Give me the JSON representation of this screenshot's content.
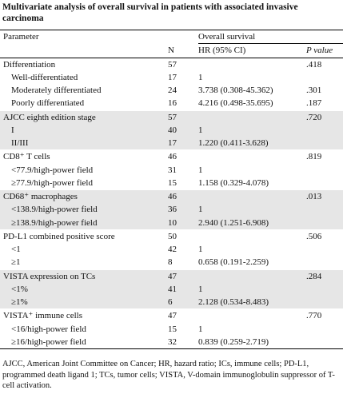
{
  "title": "Multivariate analysis of overall survival in patients with associated invasive carcinoma",
  "table": {
    "header": {
      "parameter": "Parameter",
      "group": "Overall survival",
      "n": "N",
      "hr": "HR (95% CI)",
      "p": "P value"
    },
    "groups": [
      {
        "rows": [
          {
            "label": "Differentiation",
            "n": "57",
            "p": ".418"
          },
          {
            "label": "Well-differentiated",
            "n": "17",
            "hr": "1"
          },
          {
            "label": "Moderately differentiated",
            "n": "24",
            "hr": "3.738 (0.308-45.362)",
            "p": ".301"
          },
          {
            "label": "Poorly differentiated",
            "n": "16",
            "hr": "4.216 (0.498-35.695)",
            "p": ".187"
          }
        ]
      },
      {
        "rows": [
          {
            "label": "AJCC eighth edition stage",
            "n": "57",
            "p": ".720"
          },
          {
            "label": "I",
            "n": "40",
            "hr": "1"
          },
          {
            "label": "II/III",
            "n": "17",
            "hr": "1.220 (0.411-3.628)"
          }
        ]
      },
      {
        "rows": [
          {
            "label": "CD8⁺ T cells",
            "n": "46",
            "p": ".819"
          },
          {
            "label": "<77.9/high-power field",
            "n": "31",
            "hr": "1"
          },
          {
            "label": "≥77.9/high-power field",
            "n": "15",
            "hr": "1.158 (0.329-4.078)"
          }
        ]
      },
      {
        "rows": [
          {
            "label": "CD68⁺ macrophages",
            "n": "46",
            "p": ".013"
          },
          {
            "label": "<138.9/high-power field",
            "n": "36",
            "hr": "1"
          },
          {
            "label": "≥138.9/high-power field",
            "n": "10",
            "hr": "2.940 (1.251-6.908)"
          }
        ]
      },
      {
        "rows": [
          {
            "label": "PD-L1 combined positive score",
            "n": "50",
            "p": ".506"
          },
          {
            "label": "<1",
            "n": "42",
            "hr": "1"
          },
          {
            "label": "≥1",
            "n": "8",
            "hr": "0.658 (0.191-2.259)"
          }
        ]
      },
      {
        "rows": [
          {
            "label": "VISTA expression on TCs",
            "n": "47",
            "p": ".284"
          },
          {
            "label": "<1%",
            "n": "41",
            "hr": "1"
          },
          {
            "label": "≥1%",
            "n": "6",
            "hr": "2.128 (0.534-8.483)"
          }
        ]
      },
      {
        "rows": [
          {
            "label": "VISTA⁺ immune cells",
            "n": "47",
            "p": ".770"
          },
          {
            "label": "<16/high-power field",
            "n": "15",
            "hr": "1"
          },
          {
            "label": "≥16/high-power field",
            "n": "32",
            "hr": "0.839 (0.259-2.719)"
          }
        ]
      }
    ]
  },
  "footnote": "AJCC, American Joint Committee on Cancer; HR, hazard ratio; ICs, immune cells; PD-L1, programmed death ligand 1; TCs, tumor cells; VISTA, V-domain immunoglobulin suppressor of T-cell activation."
}
